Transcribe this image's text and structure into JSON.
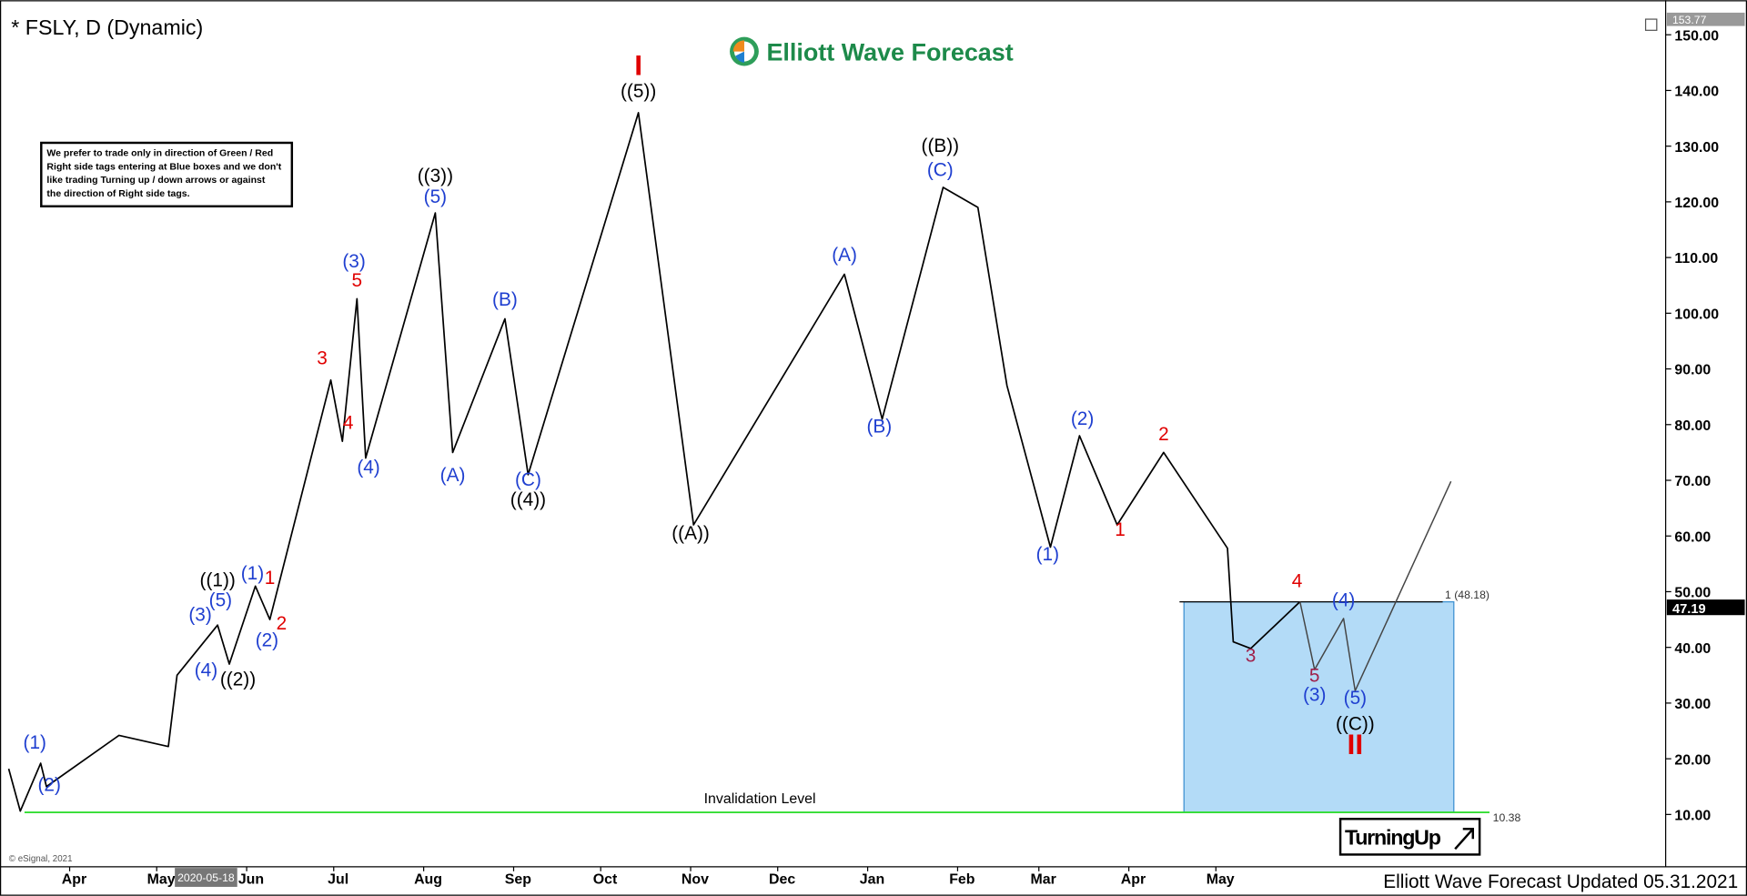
{
  "chart_data": {
    "type": "line",
    "title": "* FSLY, D (Dynamic)",
    "logo": "Elliott Wave Forecast",
    "note": [
      "We prefer to trade only in direction of Green / Red",
      "Right side tags entering at Blue boxes and we don't",
      "like trading Turning up / down arrows or against",
      "the direction of Right side tags."
    ],
    "footer": "Elliott Wave Forecast Updated 05.31.2021",
    "copyright": "© eSignal, 2021",
    "cursor_date": "2020-05-18",
    "signal": "TurningUp",
    "xlim": [
      "2020-03-08",
      "2021-10-03"
    ],
    "xticks": [
      {
        "value": "2020-04-01",
        "label": "Apr"
      },
      {
        "value": "2020-05-01",
        "label": "May"
      },
      {
        "value": "2020-06-01",
        "label": "Jun"
      },
      {
        "value": "2020-07-01",
        "label": "Jul"
      },
      {
        "value": "2020-08-01",
        "label": "Aug"
      },
      {
        "value": "2020-09-01",
        "label": "Sep"
      },
      {
        "value": "2020-10-01",
        "label": "Oct"
      },
      {
        "value": "2020-11-01",
        "label": "Nov"
      },
      {
        "value": "2020-12-01",
        "label": "Dec"
      },
      {
        "value": "2021-01-01",
        "label": "Jan"
      },
      {
        "value": "2021-02-01",
        "label": "Feb"
      },
      {
        "value": "2021-03-01",
        "label": "Mar"
      },
      {
        "value": "2021-04-01",
        "label": "Apr"
      },
      {
        "value": "2021-05-01",
        "label": "May"
      }
    ],
    "ylim": [
      1,
      154
    ],
    "yticks": [
      {
        "value": 10,
        "label": "10.00"
      },
      {
        "value": 20,
        "label": "20.00"
      },
      {
        "value": 30,
        "label": "30.00"
      },
      {
        "value": 40,
        "label": "40.00"
      },
      {
        "value": 50,
        "label": "50.00"
      },
      {
        "value": 60,
        "label": "60.00"
      },
      {
        "value": 70,
        "label": "70.00"
      },
      {
        "value": 80,
        "label": "80.00"
      },
      {
        "value": 90,
        "label": "90.00"
      },
      {
        "value": 100,
        "label": "100.00"
      },
      {
        "value": 110,
        "label": "110.00"
      },
      {
        "value": 120,
        "label": "120.00"
      },
      {
        "value": 130,
        "label": "130.00"
      },
      {
        "value": 140,
        "label": "140.00"
      },
      {
        "value": 150,
        "label": "150.00"
      }
    ],
    "high_price": 153.77,
    "last_price": 47.19,
    "series": [
      {
        "color": "#000000",
        "x": [
          "2020-03-11",
          "2020-03-15",
          "2020-03-22",
          "2020-03-24",
          "2020-04-18",
          "2020-05-05",
          "2020-05-08",
          "2020-05-22",
          "2020-05-26",
          "2020-06-04",
          "2020-06-09",
          "2020-06-30",
          "2020-07-04",
          "2020-07-09",
          "2020-07-12",
          "2020-08-05",
          "2020-08-11",
          "2020-08-29",
          "2020-09-06",
          "2020-10-14",
          "2020-11-02",
          "2020-12-24",
          "2021-01-06",
          "2021-01-27",
          "2021-02-08",
          "2021-02-18",
          "2021-03-05",
          "2021-03-15",
          "2021-03-28",
          "2021-04-13",
          "2021-05-05",
          "2021-05-07",
          "2021-05-13",
          "2021-05-30"
        ],
        "values": [
          18.2,
          10.6,
          19.2,
          15,
          24.2,
          22.2,
          35,
          44,
          37,
          51,
          45,
          88,
          77,
          102.6,
          74,
          118,
          75,
          99,
          71,
          136,
          62,
          107,
          81,
          122.6,
          119,
          87,
          58,
          78,
          62,
          75,
          57.8,
          41,
          39.8,
          48.2
        ]
      },
      {
        "color": "#444444",
        "x": [
          "2021-05-30",
          "2021-06-04",
          "2021-06-14",
          "2021-06-18",
          "2021-07-21"
        ],
        "values": [
          48.2,
          36,
          45.2,
          32.2,
          69.8
        ]
      }
    ],
    "fib_level": {
      "value": 48.18,
      "label": "1 (48.18)"
    },
    "invalidation": {
      "value": 10.38,
      "label": "10.38",
      "text": "Invalidation Level",
      "color": "#33dd33"
    },
    "zone": {
      "x": [
        "2021-04-20",
        "2021-07-22"
      ],
      "color": "#b3dbf7"
    },
    "labels": [
      {
        "text": "(1)",
        "color": "#1f3fd0",
        "x": "2020-03-20",
        "y": 21.8
      },
      {
        "text": "(2)",
        "color": "#1f3fd0",
        "x": "2020-03-25",
        "y": 14.2
      },
      {
        "text": "((1))",
        "color": "#000000",
        "x": "2020-05-22",
        "y": 51
      },
      {
        "text": "(1)",
        "color": "#1f3fd0",
        "x": "2020-06-03",
        "y": 52.2
      },
      {
        "text": "1",
        "color": "#e00000",
        "x": "2020-06-09",
        "y": 51.4
      },
      {
        "text": "(3)",
        "color": "#1f3fd0",
        "x": "2020-05-16",
        "y": 44.8
      },
      {
        "text": "(5)",
        "color": "#1f3fd0",
        "x": "2020-05-23",
        "y": 47.4
      },
      {
        "text": "(4)",
        "color": "#1f3fd0",
        "x": "2020-05-18",
        "y": 34.8
      },
      {
        "text": "((2))",
        "color": "#000000",
        "x": "2020-05-29",
        "y": 33.2
      },
      {
        "text": "(2)",
        "color": "#1f3fd0",
        "x": "2020-06-08",
        "y": 40.2
      },
      {
        "text": "2",
        "color": "#e00000",
        "x": "2020-06-13",
        "y": 43.2
      },
      {
        "text": "3",
        "color": "#e00000",
        "x": "2020-06-27",
        "y": 90.8
      },
      {
        "text": "4",
        "color": "#e00000",
        "x": "2020-07-06",
        "y": 79.2
      },
      {
        "text": "5",
        "color": "#e00000",
        "x": "2020-07-09",
        "y": 104.8
      },
      {
        "text": "(3)",
        "color": "#1f3fd0",
        "x": "2020-07-08",
        "y": 108.2
      },
      {
        "text": "(4)",
        "color": "#1f3fd0",
        "x": "2020-07-13",
        "y": 71.2
      },
      {
        "text": "((3))",
        "color": "#000000",
        "x": "2020-08-05",
        "y": 123.6
      },
      {
        "text": "(5)",
        "color": "#1f3fd0",
        "x": "2020-08-05",
        "y": 119.8
      },
      {
        "text": "(B)",
        "color": "#1f3fd0",
        "x": "2020-08-29",
        "y": 101.4
      },
      {
        "text": "(A)",
        "color": "#1f3fd0",
        "x": "2020-08-11",
        "y": 69.8
      },
      {
        "text": "(C)",
        "color": "#1f3fd0",
        "x": "2020-09-06",
        "y": 69
      },
      {
        "text": "((4))",
        "color": "#000000",
        "x": "2020-09-06",
        "y": 65.4
      },
      {
        "text": "I",
        "color": "#e00000",
        "x": "2020-10-14",
        "y": 142.8
      },
      {
        "text": "((5))",
        "color": "#000000",
        "x": "2020-10-14",
        "y": 138.8
      },
      {
        "text": "((A))",
        "color": "#000000",
        "x": "2020-11-01",
        "y": 59.4
      },
      {
        "text": "(A)",
        "color": "#1f3fd0",
        "x": "2020-12-24",
        "y": 109.4
      },
      {
        "text": "(B)",
        "color": "#1f3fd0",
        "x": "2021-01-05",
        "y": 78.6
      },
      {
        "text": "((B))",
        "color": "#000000",
        "x": "2021-01-26",
        "y": 129
      },
      {
        "text": "(C)",
        "color": "#1f3fd0",
        "x": "2021-01-26",
        "y": 124.6
      },
      {
        "text": "(1)",
        "color": "#1f3fd0",
        "x": "2021-03-04",
        "y": 55.6
      },
      {
        "text": "(2)",
        "color": "#1f3fd0",
        "x": "2021-03-16",
        "y": 80
      },
      {
        "text": "1",
        "color": "#e00000",
        "x": "2021-03-29",
        "y": 60
      },
      {
        "text": "2",
        "color": "#e00000",
        "x": "2021-04-13",
        "y": 77.2
      },
      {
        "text": "3",
        "color": "#a0204a",
        "x": "2021-05-13",
        "y": 37.4
      },
      {
        "text": "4",
        "color": "#e00000",
        "x": "2021-05-29",
        "y": 50.8
      },
      {
        "text": "5",
        "color": "#a0204a",
        "x": "2021-06-04",
        "y": 33.8
      },
      {
        "text": "(3)",
        "color": "#1f3fd0",
        "x": "2021-06-04",
        "y": 30.4
      },
      {
        "text": "(4)",
        "color": "#1f3fd0",
        "x": "2021-06-14",
        "y": 47.4
      },
      {
        "text": "(5)",
        "color": "#1f3fd0",
        "x": "2021-06-18",
        "y": 29.8
      },
      {
        "text": "((C))",
        "color": "#000000",
        "x": "2021-06-18",
        "y": 25.2
      },
      {
        "text": "II",
        "color": "#e00000",
        "x": "2021-06-18",
        "y": 20.8
      }
    ]
  }
}
